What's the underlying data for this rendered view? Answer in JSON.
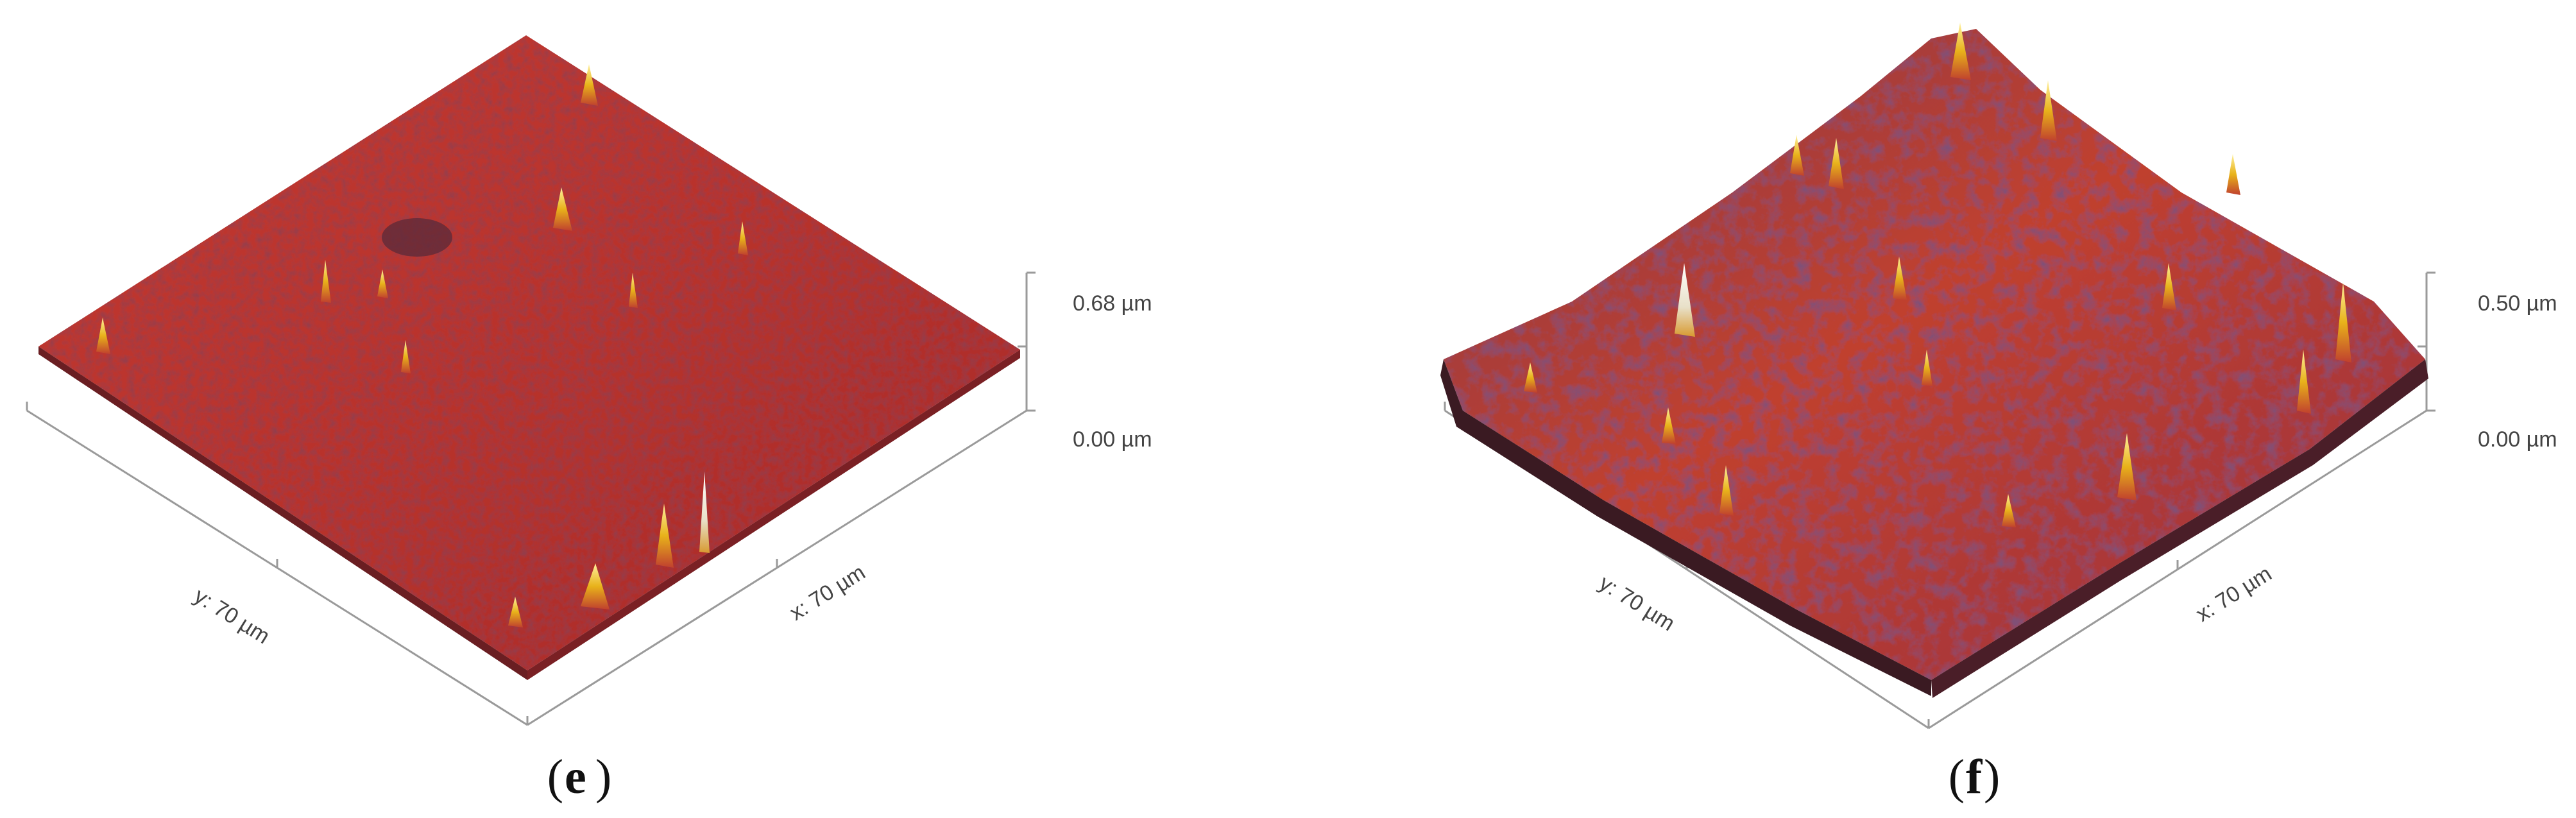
{
  "panels": [
    {
      "id": "e",
      "label_open": "(",
      "label_letter": "e",
      "label_close": ")",
      "y_axis_label": "y: 70 µm",
      "x_axis_label": "x: 70 µm",
      "z_max_label": "0.68 µm",
      "z_min_label": "0.00 µm"
    },
    {
      "id": "f",
      "label_open": "(",
      "label_letter": "f",
      "label_close": ")",
      "y_axis_label": "y: 70 µm",
      "x_axis_label": "x: 70 µm",
      "z_max_label": "0.50 µm",
      "z_min_label": "0.00 µm"
    }
  ],
  "colors": {
    "surface_base": "#b8322c",
    "surface_dark": "#5a2a3a",
    "peak_yellow": "#e8b21a",
    "peak_white": "#f2efe6",
    "axis": "#9a9a9a"
  }
}
